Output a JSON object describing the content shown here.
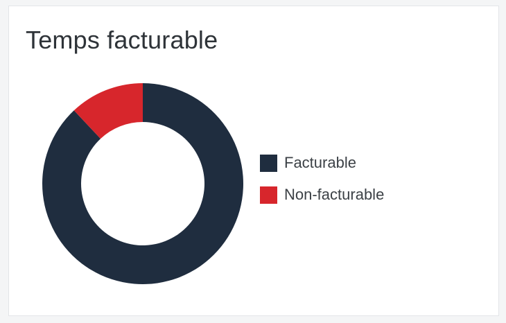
{
  "card": {
    "title": "Temps facturable"
  },
  "chart_data": {
    "type": "pie",
    "variant": "donut",
    "title": "Temps facturable",
    "categories": [
      "Facturable",
      "Non-facturable"
    ],
    "values": [
      88,
      12
    ],
    "colors": [
      "#1f2d3f",
      "#d7262c"
    ],
    "legend_position": "right"
  }
}
